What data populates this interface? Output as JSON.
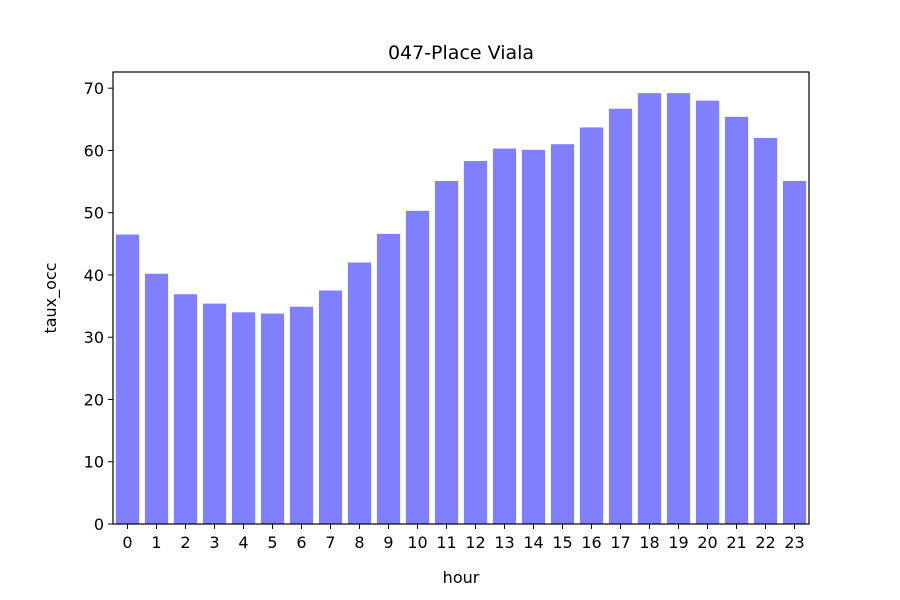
{
  "chart_data": {
    "type": "bar",
    "title": "047-Place Viala",
    "xlabel": "hour",
    "ylabel": "taux_occ",
    "categories": [
      "0",
      "1",
      "2",
      "3",
      "4",
      "5",
      "6",
      "7",
      "8",
      "9",
      "10",
      "11",
      "12",
      "13",
      "14",
      "15",
      "16",
      "17",
      "18",
      "19",
      "20",
      "21",
      "22",
      "23"
    ],
    "values": [
      46.5,
      40.2,
      36.9,
      35.4,
      34.0,
      33.8,
      34.9,
      37.5,
      42.0,
      46.6,
      50.3,
      55.1,
      58.3,
      60.3,
      60.1,
      61.0,
      63.7,
      66.7,
      69.2,
      69.2,
      68.0,
      65.4,
      62.0,
      55.1
    ],
    "ylim": [
      0,
      72.6
    ],
    "yticks": [
      "0",
      "10",
      "20",
      "30",
      "40",
      "50",
      "60",
      "70"
    ],
    "bar_color": "#7f7fff",
    "grid": false
  }
}
